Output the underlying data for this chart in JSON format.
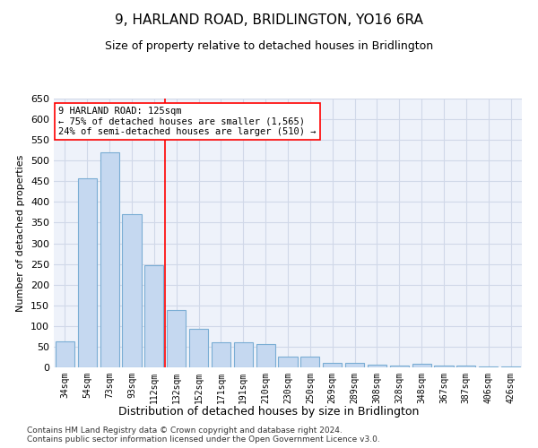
{
  "title": "9, HARLAND ROAD, BRIDLINGTON, YO16 6RA",
  "subtitle": "Size of property relative to detached houses in Bridlington",
  "xlabel": "Distribution of detached houses by size in Bridlington",
  "ylabel": "Number of detached properties",
  "categories": [
    "34sqm",
    "54sqm",
    "73sqm",
    "93sqm",
    "112sqm",
    "132sqm",
    "152sqm",
    "171sqm",
    "191sqm",
    "210sqm",
    "230sqm",
    "250sqm",
    "269sqm",
    "289sqm",
    "308sqm",
    "328sqm",
    "348sqm",
    "367sqm",
    "387sqm",
    "406sqm",
    "426sqm"
  ],
  "values": [
    62,
    458,
    521,
    370,
    248,
    138,
    93,
    61,
    60,
    56,
    26,
    26,
    11,
    11,
    7,
    5,
    8,
    4,
    4,
    2,
    2
  ],
  "bar_color": "#c5d8f0",
  "bar_edge_color": "#7aadd4",
  "grid_color": "#d0d8e8",
  "background_color": "#eef2fa",
  "annotation_line1": "9 HARLAND ROAD: 125sqm",
  "annotation_line2": "← 75% of detached houses are smaller (1,565)",
  "annotation_line3": "24% of semi-detached houses are larger (510) →",
  "vline_position": 4.5,
  "ylim": [
    0,
    650
  ],
  "yticks": [
    0,
    50,
    100,
    150,
    200,
    250,
    300,
    350,
    400,
    450,
    500,
    550,
    600,
    650
  ],
  "footer_line1": "Contains HM Land Registry data © Crown copyright and database right 2024.",
  "footer_line2": "Contains public sector information licensed under the Open Government Licence v3.0."
}
